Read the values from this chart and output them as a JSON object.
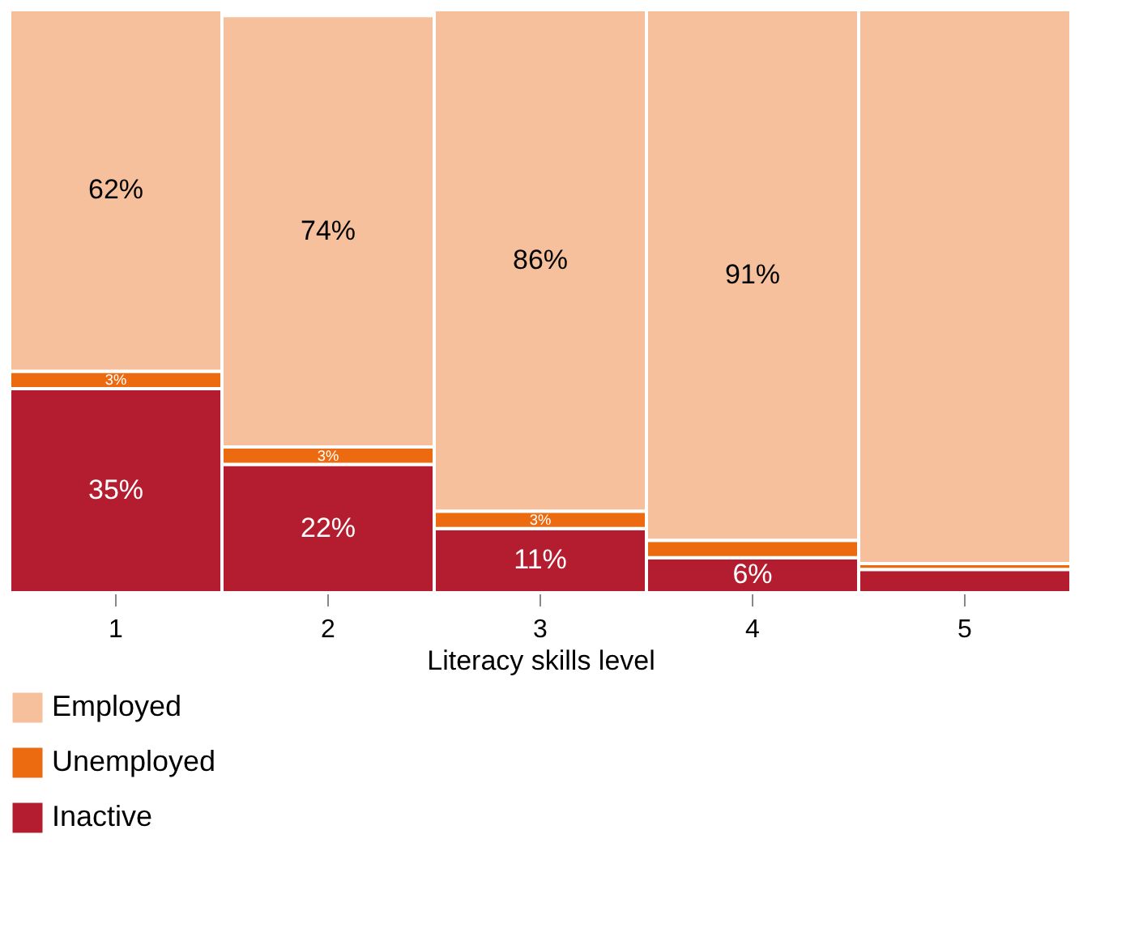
{
  "chart_data": {
    "type": "bar",
    "stacked": true,
    "xlabel": "Literacy skills level",
    "categories": [
      "1",
      "2",
      "3",
      "4",
      "5"
    ],
    "series": [
      {
        "name": "Inactive",
        "color": "#b41d2f",
        "values": [
          35,
          22,
          11,
          6,
          4
        ],
        "value_labels": [
          "35%",
          "22%",
          "11%",
          "6%",
          null
        ]
      },
      {
        "name": "Unemployed",
        "color": "#ec6b10",
        "values": [
          3,
          3,
          3,
          3,
          1
        ],
        "value_labels": [
          "3%",
          "3%",
          "3%",
          null,
          null
        ]
      },
      {
        "name": "Employed",
        "color": "#f6c09c",
        "values": [
          62,
          74,
          86,
          91,
          95
        ],
        "value_labels": [
          "62%",
          "74%",
          "86%",
          "91%",
          null
        ]
      }
    ],
    "legend": "bottom left"
  }
}
